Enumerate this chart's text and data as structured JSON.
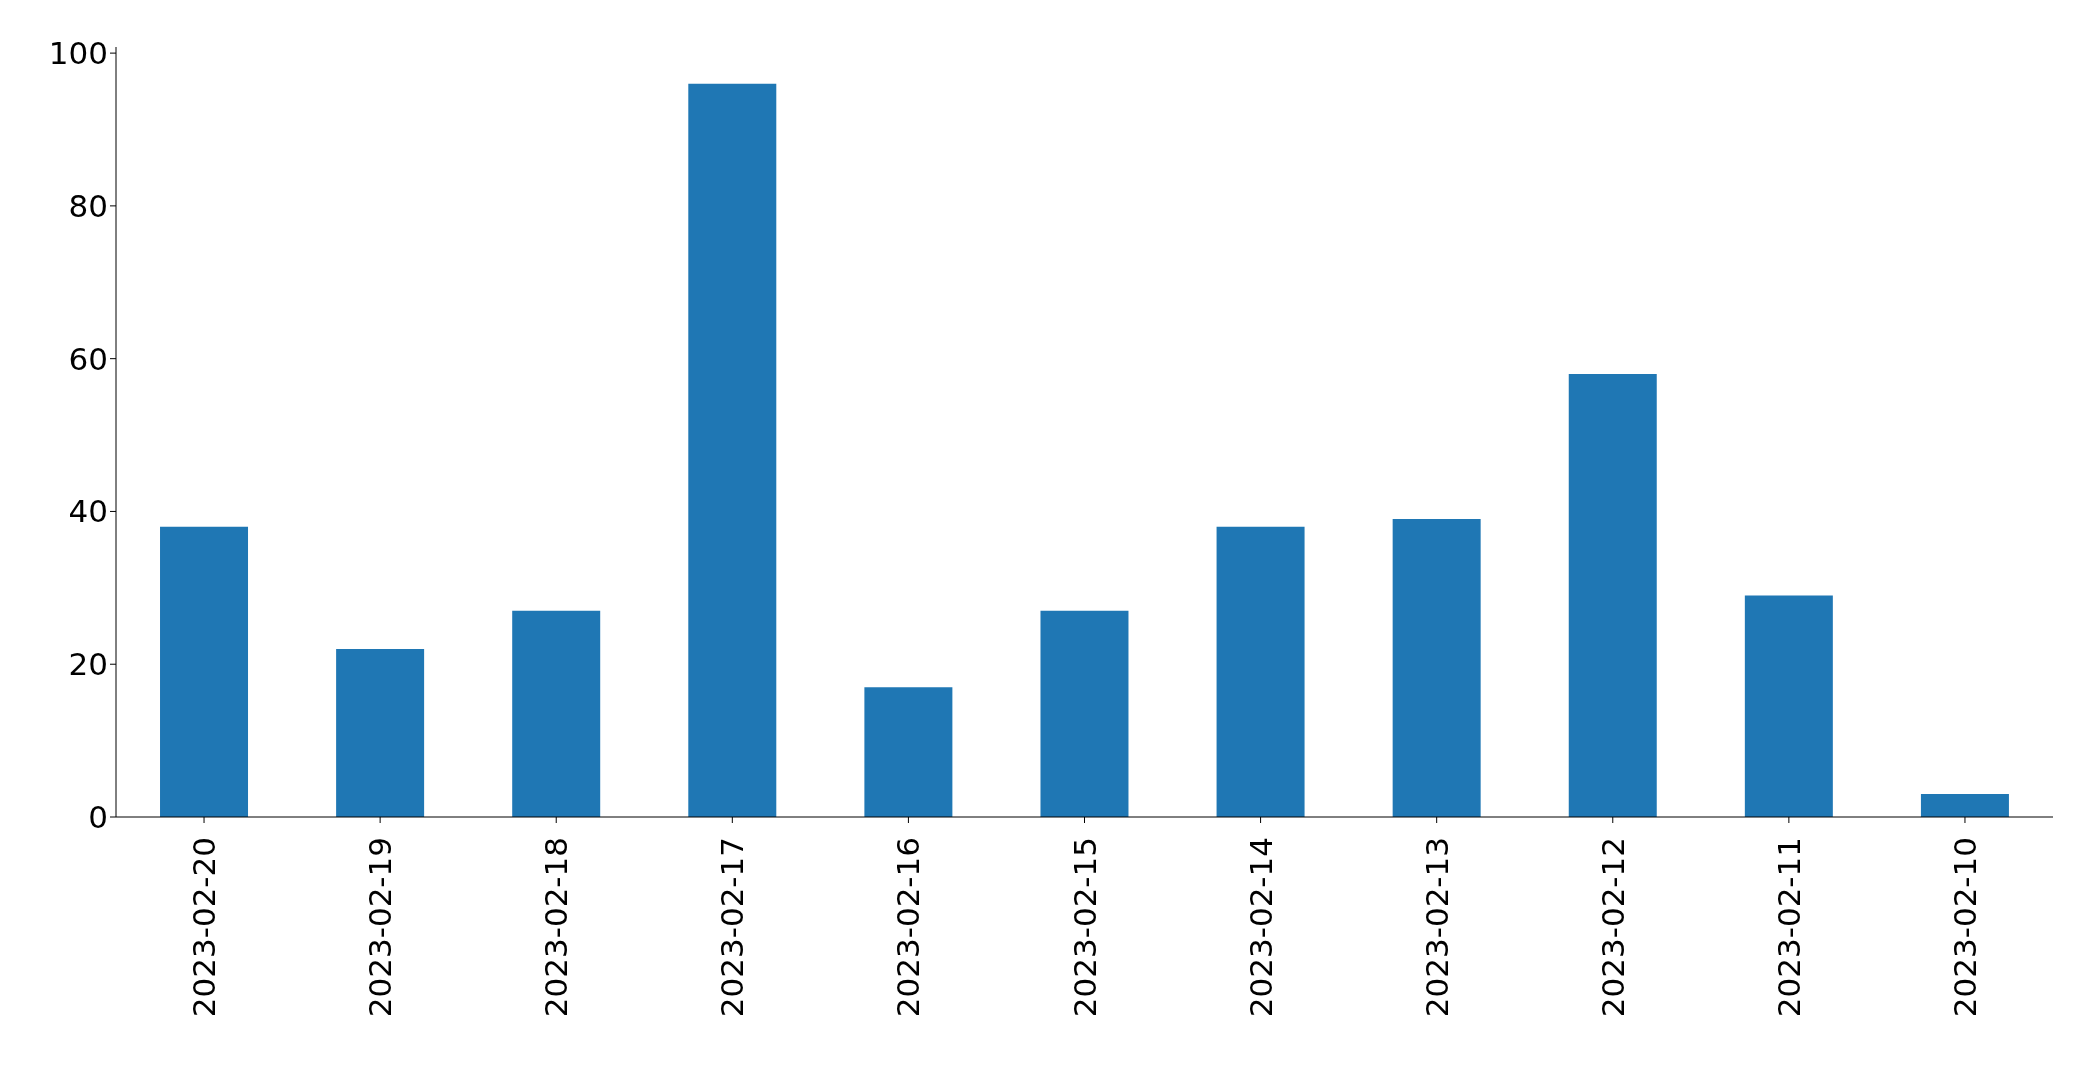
{
  "chart_data": {
    "type": "bar",
    "categories": [
      "2023-02-20",
      "2023-02-19",
      "2023-02-18",
      "2023-02-17",
      "2023-02-16",
      "2023-02-15",
      "2023-02-14",
      "2023-02-13",
      "2023-02-12",
      "2023-02-11",
      "2023-02-10"
    ],
    "values": [
      38,
      22,
      27,
      96,
      17,
      27,
      38,
      39,
      58,
      29,
      3
    ],
    "color": "#1f77b4",
    "ylim": [
      0,
      100.8
    ],
    "yticks": [
      0,
      20,
      40,
      60,
      80,
      100
    ]
  }
}
